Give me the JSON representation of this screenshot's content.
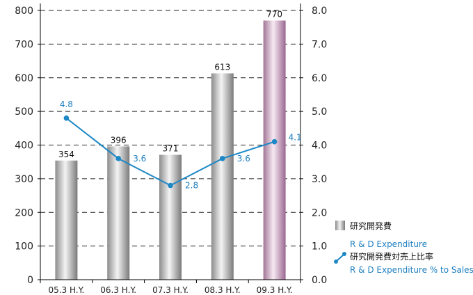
{
  "chart_data": {
    "type": "bar",
    "categories": [
      "05.3 H.Y.",
      "06.3 H.Y.",
      "07.3 H.Y.",
      "08.3 H.Y.",
      "09.3 H.Y."
    ],
    "series": [
      {
        "name": "研究開発費",
        "name_en": "R & D Expenditure",
        "type": "bar",
        "axis": "left",
        "values": [
          354,
          396,
          371,
          613,
          770
        ],
        "labels": [
          "354",
          "396",
          "371",
          "613",
          "770"
        ]
      },
      {
        "name": "研究開発費対売上比率",
        "name_en": "R & D Expenditure % to Sales",
        "type": "line",
        "axis": "right",
        "values": [
          4.8,
          3.6,
          2.8,
          3.6,
          4.1
        ],
        "labels": [
          "4.8",
          "3.6",
          "2.8",
          "3.6",
          "4.1"
        ]
      }
    ],
    "y_left": {
      "lim": [
        0,
        800
      ],
      "ticks": [
        "0",
        "100",
        "200",
        "300",
        "400",
        "500",
        "600",
        "700",
        "800"
      ]
    },
    "y_right": {
      "lim": [
        0,
        8
      ],
      "ticks": [
        "0.0",
        "1.0",
        "2.0",
        "3.0",
        "4.0",
        "5.0",
        "6.0",
        "7.0",
        "8.0"
      ]
    },
    "grid": "dashed horizontal",
    "legend_position": "bottom-right",
    "highlight_category": "09.3 H.Y.",
    "colors": {
      "bar_gray": "#9a9a9a",
      "bar_highlight": "#b889ad",
      "line": "#1e88c6",
      "pct_label": "#1e7fbf",
      "legend_en": "#1e7fbf",
      "axis": "#000000",
      "grid": "#222222"
    }
  }
}
